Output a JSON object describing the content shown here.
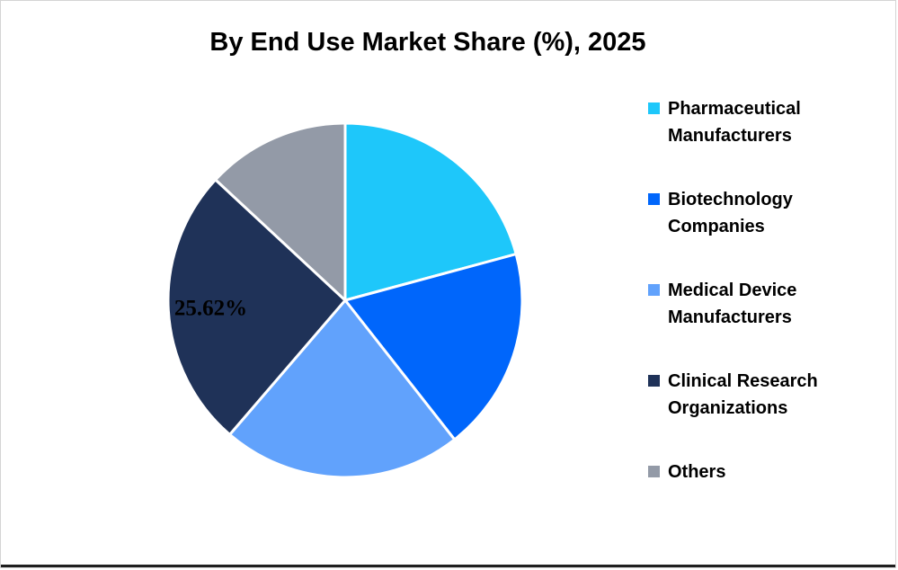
{
  "title": "By End Use Market Share (%), 2025",
  "chart_data": {
    "type": "pie",
    "categories": [
      "Pharmaceutical Manufacturers",
      "Biotechnology Companies",
      "Medical Device Manufacturers",
      "Clinical Research Organizations",
      "Others"
    ],
    "values": [
      20.8,
      18.6,
      21.9,
      25.62,
      13.08
    ],
    "colors": [
      "#1EC7FA",
      "#0066FB",
      "#61A2FC",
      "#1F3258",
      "#939AA7"
    ],
    "data_labels": [
      {
        "slice_index": 3,
        "text": "25.62%"
      }
    ],
    "start_angle_deg": 0,
    "direction": "clockwise",
    "legend_position": "right",
    "slice_border_color": "#FFFFFF"
  }
}
